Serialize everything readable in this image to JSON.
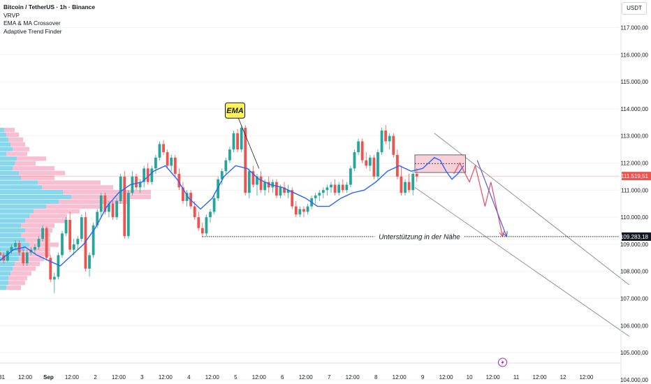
{
  "legend": {
    "title": "Bitcoin / TetherUS · 1h · Binance",
    "indicators": [
      "VRVP",
      "EMA & MA Crossover",
      "Adaptive Trend Finder"
    ]
  },
  "currency_label": "USDT",
  "colors": {
    "up": "#26a69a",
    "down": "#ef5350",
    "ema": "#2962ff",
    "box": "#f7c5ce",
    "projection": "#e64a63",
    "support": "#131722"
  },
  "chart_data": {
    "type": "candlestick",
    "y_axis": {
      "min": 104000,
      "max": 117500,
      "ticks": [
        "117.000,00",
        "116.000,00",
        "115.000,00",
        "114.000,00",
        "113.000,00",
        "112.000,00",
        "111.000,00",
        "110.000,00",
        "109.000,00",
        "108.000,00",
        "107.000,00",
        "106.000,00",
        "105.000,00",
        "104.000,00"
      ],
      "tick_values": [
        117000,
        116000,
        115000,
        114000,
        113000,
        112000,
        111000,
        110000,
        109000,
        108000,
        107000,
        106000,
        105000,
        104000
      ]
    },
    "x_axis": {
      "labels": [
        "31",
        "12:00",
        "Sep",
        "12:00",
        "2",
        "12:00",
        "3",
        "12:00",
        "4",
        "12:00",
        "5",
        "12:00",
        "6",
        "12:00",
        "7",
        "12:00",
        "8",
        "12:00",
        "9",
        "12:00",
        "10",
        "12:00",
        "11",
        "12:00",
        "12",
        "12:00"
      ],
      "label_hours": [
        0,
        12,
        24,
        36,
        48,
        60,
        72,
        84,
        96,
        108,
        120,
        132,
        144,
        156,
        168,
        180,
        192,
        204,
        216,
        228,
        240,
        252,
        264,
        276,
        288,
        300
      ],
      "bold_labels": [
        "Sep"
      ]
    },
    "price_labels": [
      {
        "value": 111519.51,
        "text": "111.519,51",
        "color": "#ef5350",
        "text_color": "#ffffff"
      },
      {
        "value": 109283.18,
        "text": "109.283,18",
        "color": "#131722",
        "text_color": "#ffffff"
      }
    ],
    "ema_path": [
      [
        -1,
        108400
      ],
      [
        6,
        108800
      ],
      [
        12,
        108900
      ],
      [
        18,
        108600
      ],
      [
        24,
        108400
      ],
      [
        30,
        108200
      ],
      [
        36,
        108600
      ],
      [
        42,
        109000
      ],
      [
        48,
        109600
      ],
      [
        54,
        110400
      ],
      [
        60,
        110900
      ],
      [
        66,
        111200
      ],
      [
        72,
        111300
      ],
      [
        78,
        111700
      ],
      [
        84,
        111900
      ],
      [
        90,
        111400
      ],
      [
        96,
        110700
      ],
      [
        102,
        110300
      ],
      [
        108,
        110700
      ],
      [
        114,
        111500
      ],
      [
        120,
        111900
      ],
      [
        126,
        111800
      ],
      [
        132,
        111400
      ],
      [
        138,
        111200
      ],
      [
        144,
        111100
      ],
      [
        150,
        110900
      ],
      [
        156,
        110700
      ],
      [
        162,
        110400
      ],
      [
        168,
        110400
      ],
      [
        174,
        110700
      ],
      [
        180,
        110900
      ],
      [
        186,
        111000
      ],
      [
        192,
        111300
      ],
      [
        198,
        111700
      ],
      [
        204,
        111900
      ],
      [
        210,
        111700
      ],
      [
        216,
        111800
      ],
      [
        219,
        112000
      ],
      [
        222,
        112200
      ],
      [
        225,
        112100
      ],
      [
        228,
        111700
      ],
      [
        231,
        111400
      ],
      [
        234,
        111600
      ],
      [
        237,
        111900
      ]
    ],
    "support": {
      "value": 109283.18,
      "label": "Unterstützung in der Nähe",
      "from_hour": 103,
      "to_hour": 297
    },
    "resistance_box": {
      "from_hour": 212,
      "to_hour": 238,
      "low": 111650,
      "high": 112300,
      "mid": 111980
    },
    "projection_path": [
      [
        232,
        111600
      ],
      [
        235,
        112000
      ],
      [
        240,
        111300
      ],
      [
        243,
        111900
      ],
      [
        248,
        110400
      ],
      [
        251,
        111300
      ],
      [
        257,
        109300
      ]
    ],
    "blue_arrow": [
      [
        244,
        112100
      ],
      [
        259,
        109300
      ]
    ],
    "channel_upper": [
      [
        222,
        113100
      ],
      [
        322,
        107500
      ]
    ],
    "channel_lower": [
      [
        212,
        111100
      ],
      [
        322,
        105600
      ]
    ],
    "ema_callout": {
      "text": "EMA",
      "hour": 119,
      "value": 113940,
      "pointer_hour": 132,
      "pointer_value": 111800
    },
    "volume_profile": {
      "top": 113300,
      "bottom": 107300,
      "bars": [
        {
          "up": 2,
          "down": 5
        },
        {
          "up": 3,
          "down": 6
        },
        {
          "up": 4,
          "down": 7
        },
        {
          "up": 5,
          "down": 7
        },
        {
          "up": 6,
          "down": 8
        },
        {
          "up": 3,
          "down": 10
        },
        {
          "up": 8,
          "down": 14
        },
        {
          "up": 7,
          "down": 10
        },
        {
          "up": 6,
          "down": 20
        },
        {
          "up": 9,
          "down": 22
        },
        {
          "up": 10,
          "down": 16
        },
        {
          "up": 18,
          "down": 30
        },
        {
          "up": 20,
          "down": 34
        },
        {
          "up": 30,
          "down": 42
        },
        {
          "up": 34,
          "down": 38
        },
        {
          "up": 28,
          "down": 34
        },
        {
          "up": 22,
          "down": 26
        },
        {
          "up": 16,
          "down": 22
        },
        {
          "up": 14,
          "down": 18
        },
        {
          "up": 12,
          "down": 20
        },
        {
          "up": 10,
          "down": 16
        },
        {
          "up": 12,
          "down": 13
        },
        {
          "up": 10,
          "down": 14
        },
        {
          "up": 12,
          "down": 12
        },
        {
          "up": 14,
          "down": 14
        },
        {
          "up": 12,
          "down": 12
        },
        {
          "up": 10,
          "down": 14
        },
        {
          "up": 9,
          "down": 12
        },
        {
          "up": 7,
          "down": 12
        },
        {
          "up": 6,
          "down": 11
        },
        {
          "up": 5,
          "down": 10
        },
        {
          "up": 4,
          "down": 9
        },
        {
          "up": 4,
          "down": 8
        },
        {
          "up": 3,
          "down": 7
        }
      ]
    },
    "candles": [
      [
        -1,
        108700,
        108850,
        108500,
        108600
      ],
      [
        1,
        108600,
        108700,
        108300,
        108400
      ],
      [
        3,
        108400,
        108800,
        108350,
        108750
      ],
      [
        5,
        108750,
        109000,
        108650,
        108900
      ],
      [
        7,
        108900,
        109150,
        108800,
        109050
      ],
      [
        9,
        109050,
        109150,
        108600,
        108700
      ],
      [
        11,
        108700,
        108850,
        108200,
        108300
      ],
      [
        13,
        108300,
        108800,
        108200,
        108700
      ],
      [
        15,
        108700,
        108900,
        108600,
        108800
      ],
      [
        17,
        108800,
        109000,
        108650,
        108900
      ],
      [
        19,
        108900,
        109300,
        108800,
        109200
      ],
      [
        21,
        109200,
        109700,
        109100,
        109600
      ],
      [
        23,
        109600,
        109650,
        108400,
        108500
      ],
      [
        25,
        108500,
        108600,
        107600,
        107700
      ],
      [
        27,
        107700,
        107950,
        107200,
        107800
      ],
      [
        29,
        107800,
        108700,
        107700,
        108600
      ],
      [
        31,
        108600,
        109500,
        108500,
        109400
      ],
      [
        33,
        109400,
        110000,
        109300,
        109900
      ],
      [
        35,
        109900,
        110200,
        108700,
        108800
      ],
      [
        37,
        108800,
        109200,
        108600,
        109000
      ],
      [
        39,
        109000,
        109300,
        108800,
        109200
      ],
      [
        41,
        109200,
        110100,
        109100,
        110000
      ],
      [
        43,
        110000,
        110200,
        108000,
        108100
      ],
      [
        45,
        108100,
        108700,
        107800,
        108600
      ],
      [
        47,
        108600,
        109800,
        108500,
        109700
      ],
      [
        49,
        109700,
        110300,
        109600,
        110200
      ],
      [
        51,
        110200,
        110900,
        110000,
        110800
      ],
      [
        53,
        110800,
        110900,
        110100,
        110200
      ],
      [
        55,
        110200,
        110600,
        110000,
        110500
      ],
      [
        57,
        110500,
        110600,
        109900,
        110000
      ],
      [
        59,
        110000,
        110700,
        109900,
        110600
      ],
      [
        61,
        110600,
        111600,
        110500,
        111500
      ],
      [
        63,
        111500,
        111700,
        109200,
        109300
      ],
      [
        65,
        109300,
        111000,
        109200,
        110900
      ],
      [
        67,
        110900,
        111700,
        110800,
        111500
      ],
      [
        69,
        111500,
        111600,
        111000,
        111100
      ],
      [
        71,
        111100,
        111400,
        110900,
        111300
      ],
      [
        73,
        111300,
        111900,
        111100,
        111800
      ],
      [
        75,
        111800,
        112000,
        111200,
        111300
      ],
      [
        77,
        111300,
        111900,
        111200,
        111800
      ],
      [
        79,
        111800,
        112300,
        111600,
        112200
      ],
      [
        81,
        112200,
        112800,
        112100,
        112700
      ],
      [
        83,
        112700,
        112850,
        112300,
        112400
      ],
      [
        85,
        112400,
        112500,
        111800,
        111900
      ],
      [
        87,
        111900,
        112300,
        111700,
        112200
      ],
      [
        89,
        112200,
        112300,
        111500,
        111600
      ],
      [
        91,
        111600,
        111800,
        111000,
        111100
      ],
      [
        93,
        111100,
        111300,
        110500,
        110600
      ],
      [
        95,
        110600,
        111000,
        110400,
        110900
      ],
      [
        97,
        110900,
        111000,
        110300,
        110400
      ],
      [
        99,
        110400,
        110600,
        109900,
        110000
      ],
      [
        101,
        110000,
        110200,
        109500,
        109600
      ],
      [
        103,
        109600,
        109800,
        109250,
        109400
      ],
      [
        105,
        109400,
        110100,
        109300,
        110000
      ],
      [
        107,
        110000,
        110300,
        109800,
        110200
      ],
      [
        109,
        110200,
        110800,
        110100,
        110700
      ],
      [
        111,
        110700,
        111500,
        110600,
        111400
      ],
      [
        113,
        111400,
        111800,
        111200,
        111700
      ],
      [
        115,
        111700,
        112200,
        111600,
        112100
      ],
      [
        117,
        112100,
        112600,
        112000,
        112500
      ],
      [
        119,
        112500,
        113200,
        112400,
        113100
      ],
      [
        121,
        113100,
        113250,
        112400,
        112500
      ],
      [
        123,
        112500,
        113400,
        112400,
        113300
      ],
      [
        125,
        113300,
        113400,
        110800,
        110900
      ],
      [
        127,
        110900,
        111800,
        110700,
        111700
      ],
      [
        129,
        111700,
        111900,
        111100,
        111200
      ],
      [
        131,
        111200,
        111600,
        110800,
        111500
      ],
      [
        133,
        111500,
        111700,
        110900,
        111000
      ],
      [
        135,
        111000,
        111400,
        110800,
        111300
      ],
      [
        137,
        111300,
        111500,
        110900,
        111100
      ],
      [
        139,
        111100,
        111400,
        110900,
        111300
      ],
      [
        141,
        111300,
        111400,
        110700,
        110800
      ],
      [
        143,
        110800,
        111200,
        110700,
        111100
      ],
      [
        145,
        111100,
        111300,
        110800,
        110900
      ],
      [
        147,
        110900,
        111200,
        110700,
        111000
      ],
      [
        149,
        111000,
        111100,
        110300,
        110400
      ],
      [
        151,
        110400,
        110600,
        110000,
        110100
      ],
      [
        153,
        110100,
        110400,
        110000,
        110300
      ],
      [
        155,
        110300,
        110400,
        110000,
        110200
      ],
      [
        157,
        110200,
        110500,
        110100,
        110400
      ],
      [
        159,
        110400,
        110800,
        110300,
        110700
      ],
      [
        161,
        110700,
        110900,
        110500,
        110800
      ],
      [
        163,
        110800,
        111000,
        110600,
        110900
      ],
      [
        165,
        110900,
        111100,
        110700,
        111000
      ],
      [
        167,
        111000,
        111200,
        110800,
        111100
      ],
      [
        169,
        111100,
        111300,
        110900,
        111200
      ],
      [
        171,
        111200,
        111400,
        110800,
        110900
      ],
      [
        173,
        110900,
        111300,
        110800,
        111200
      ],
      [
        175,
        111200,
        111400,
        110900,
        111000
      ],
      [
        177,
        111000,
        111300,
        110900,
        111200
      ],
      [
        179,
        111200,
        111900,
        111100,
        111800
      ],
      [
        181,
        111800,
        112500,
        111700,
        112400
      ],
      [
        183,
        112400,
        112900,
        112300,
        112800
      ],
      [
        185,
        112800,
        112900,
        112000,
        112100
      ],
      [
        187,
        112100,
        112400,
        111800,
        111900
      ],
      [
        189,
        111900,
        112300,
        111700,
        112200
      ],
      [
        191,
        112200,
        112300,
        111400,
        111500
      ],
      [
        193,
        111500,
        112500,
        111400,
        112400
      ],
      [
        195,
        112400,
        113300,
        112300,
        113200
      ],
      [
        197,
        113200,
        113400,
        112700,
        112800
      ],
      [
        199,
        112800,
        113100,
        112500,
        113000
      ],
      [
        201,
        113000,
        113100,
        112200,
        112300
      ],
      [
        203,
        112300,
        112500,
        111400,
        111500
      ],
      [
        205,
        111500,
        111900,
        110800,
        110900
      ],
      [
        207,
        110900,
        111400,
        110800,
        111300
      ],
      [
        209,
        111300,
        111600,
        110900,
        111000
      ],
      [
        211,
        111000,
        111700,
        110800,
        111600
      ],
      [
        213,
        111600,
        111800,
        111300,
        111500
      ]
    ]
  }
}
